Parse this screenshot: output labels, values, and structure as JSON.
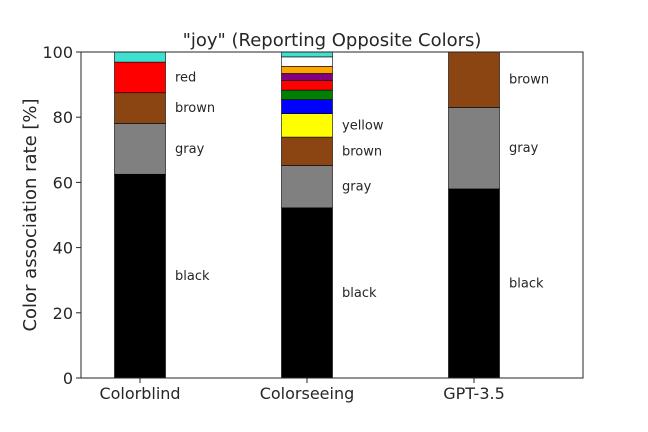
{
  "chart_data": {
    "type": "bar",
    "stacked": true,
    "title": "\"joy\" (Reporting Opposite Colors)",
    "xlabel": "",
    "ylabel": "Color association rate [%]",
    "ylim": [
      0,
      100
    ],
    "yticks": [
      0,
      20,
      40,
      60,
      80,
      100
    ],
    "grid": false,
    "categories": [
      "Colorblind",
      "Colorseeing",
      "GPT-3.5"
    ],
    "stacks": [
      {
        "category": "Colorblind",
        "segments": [
          {
            "name": "black",
            "value": 62.5,
            "color": "#000000",
            "label": "black"
          },
          {
            "name": "gray",
            "value": 15.6,
            "color": "#808080",
            "label": "gray"
          },
          {
            "name": "brown",
            "value": 9.4,
            "color": "#8b4513",
            "label": "brown"
          },
          {
            "name": "red",
            "value": 9.4,
            "color": "#ff0000",
            "label": "red"
          },
          {
            "name": "turquoise",
            "value": 3.1,
            "color": "#40e0d0",
            "label": ""
          }
        ]
      },
      {
        "category": "Colorseeing",
        "segments": [
          {
            "name": "black",
            "value": 52.2,
            "color": "#000000",
            "label": "black"
          },
          {
            "name": "gray",
            "value": 13.0,
            "color": "#808080",
            "label": "gray"
          },
          {
            "name": "brown",
            "value": 8.7,
            "color": "#8b4513",
            "label": "brown"
          },
          {
            "name": "yellow",
            "value": 7.2,
            "color": "#ffff00",
            "label": "yellow"
          },
          {
            "name": "blue",
            "value": 4.3,
            "color": "#0000ff",
            "label": ""
          },
          {
            "name": "green",
            "value": 2.9,
            "color": "#008000",
            "label": ""
          },
          {
            "name": "red",
            "value": 2.9,
            "color": "#ff0000",
            "label": ""
          },
          {
            "name": "purple",
            "value": 2.2,
            "color": "#800080",
            "label": ""
          },
          {
            "name": "orange",
            "value": 2.2,
            "color": "#ffa500",
            "label": ""
          },
          {
            "name": "white",
            "value": 2.9,
            "color": "#ffffff",
            "label": ""
          },
          {
            "name": "turquoise",
            "value": 1.5,
            "color": "#40e0d0",
            "label": ""
          }
        ]
      },
      {
        "category": "GPT-3.5",
        "segments": [
          {
            "name": "black",
            "value": 58.0,
            "color": "#000000",
            "label": "black"
          },
          {
            "name": "gray",
            "value": 25.0,
            "color": "#808080",
            "label": "gray"
          },
          {
            "name": "brown",
            "value": 17.0,
            "color": "#8b4513",
            "label": "brown"
          }
        ]
      }
    ]
  }
}
